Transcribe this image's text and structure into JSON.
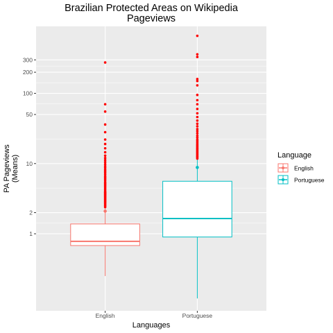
{
  "chart_data": {
    "type": "boxplot",
    "title": [
      "Brazilian Protected Areas on Wikipedia",
      "Pageviews"
    ],
    "xlabel": "Languages",
    "ylabel": [
      "PA Pageviews",
      "(Means)"
    ],
    "y_scale": "log10",
    "ylim": [
      0.08,
      900
    ],
    "y_ticks": [
      1,
      2,
      10,
      50,
      100,
      200,
      300
    ],
    "y_tick_labels": [
      "1",
      "2",
      "10",
      "50",
      "100",
      "200",
      "300"
    ],
    "categories": [
      "English",
      "Portuguese"
    ],
    "legend": {
      "title": "Language",
      "entries": [
        "English",
        "Portuguese"
      ],
      "position": "right"
    },
    "series": [
      {
        "name": "English",
        "color": "#F8766D",
        "whisker_low": 0.25,
        "q1": 0.68,
        "median": 0.78,
        "q3": 1.38,
        "whisker_high": 2.35,
        "mean": 2.1,
        "outliers": [
          2.4,
          2.5,
          2.6,
          2.7,
          2.8,
          2.9,
          3.0,
          3.1,
          3.2,
          3.3,
          3.4,
          3.5,
          3.6,
          3.7,
          3.8,
          3.9,
          4.0,
          4.2,
          4.4,
          4.6,
          4.8,
          5.0,
          5.2,
          5.4,
          5.7,
          6.0,
          6.3,
          6.6,
          7.0,
          7.4,
          7.8,
          8.2,
          8.7,
          9.2,
          9.8,
          10.5,
          11.2,
          12.0,
          13.0,
          14.5,
          16.5,
          19.0,
          22.0,
          28.0,
          36.0,
          55.0,
          70.0,
          275.0
        ]
      },
      {
        "name": "Portuguese",
        "color": "#00BFC4",
        "whisker_low": 0.12,
        "q1": 0.9,
        "median": 1.65,
        "q3": 5.6,
        "whisker_high": 11.5,
        "mean": 8.8,
        "outliers": [
          11.8,
          12.2,
          12.6,
          13.0,
          13.5,
          14.0,
          14.5,
          15.0,
          15.6,
          16.2,
          16.8,
          17.5,
          18.2,
          19.0,
          20.0,
          21.0,
          22.0,
          23.5,
          25.0,
          27.0,
          29.0,
          31.0,
          34.0,
          37.0,
          41.0,
          46.0,
          52.0,
          60.0,
          70.0,
          80.0,
          95.0,
          130.0,
          150.0,
          160.0,
          330.0,
          360.0,
          660.0
        ]
      }
    ]
  }
}
